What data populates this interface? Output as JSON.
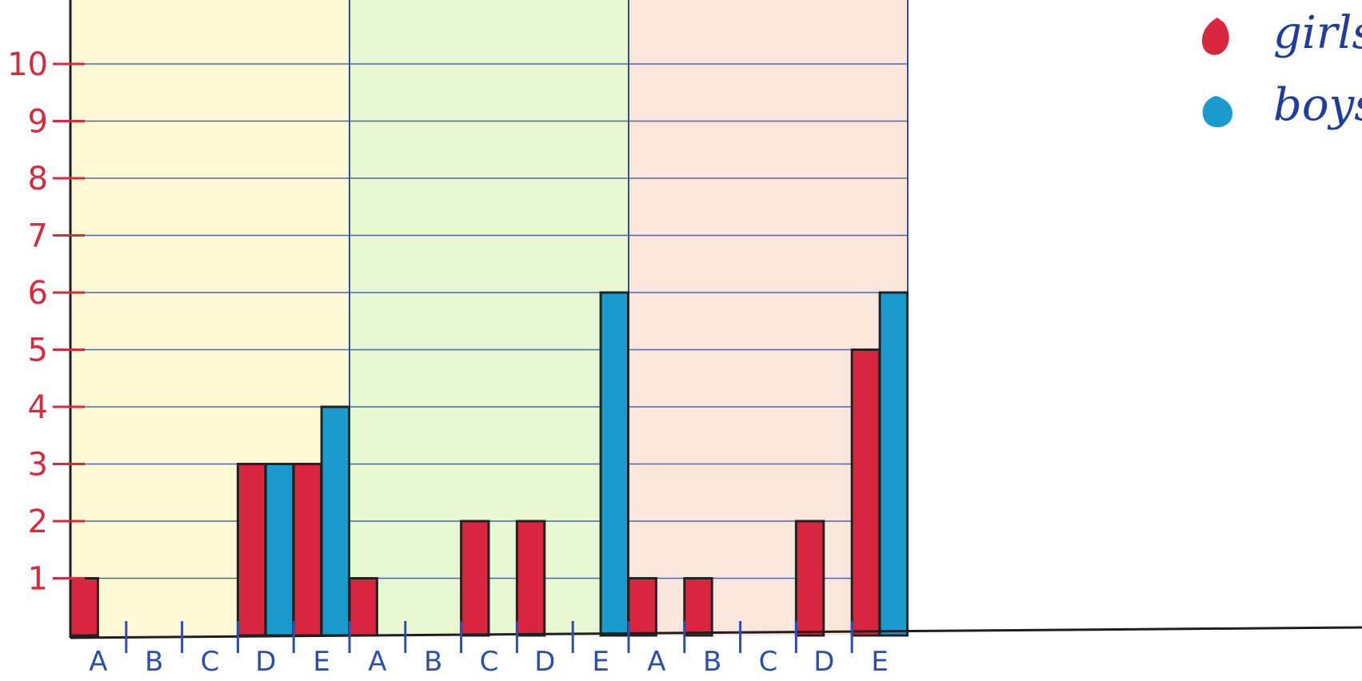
{
  "chart_data": {
    "type": "bar",
    "title": "",
    "xlabel": "",
    "ylabel": "",
    "ylim": [
      0,
      10
    ],
    "yticks": [
      "1",
      "2",
      "3",
      "4",
      "5",
      "6",
      "7",
      "8",
      "9",
      "10"
    ],
    "legend": {
      "placement": "top-right"
    },
    "groups": [
      {
        "background": "#fdf9d2"
      },
      {
        "background": "#e6f7d2"
      },
      {
        "background": "#fbe6de"
      }
    ],
    "categories": [
      "A",
      "B",
      "C",
      "D",
      "E",
      "A",
      "B",
      "C",
      "D",
      "E",
      "A",
      "B",
      "C",
      "D",
      "E"
    ],
    "series": [
      {
        "name": "girls",
        "color": "#d9263f",
        "values": [
          1,
          0,
          0,
          3,
          3,
          1,
          0,
          2,
          2,
          0,
          1,
          1,
          0,
          2,
          5
        ]
      },
      {
        "name": "boys",
        "color": "#1a9bd0",
        "values": [
          0,
          0,
          0,
          3,
          4,
          0,
          0,
          0,
          0,
          6,
          0,
          0,
          0,
          0,
          6
        ]
      }
    ],
    "grid": true,
    "colors": {
      "axis": "#1f1f1f",
      "tick_labels": "#d62b3c",
      "gridline": "#2e4fa8",
      "category_labels": "#2e4fa8",
      "legend_text": "#1f3e9c",
      "bar_outline": "#222222"
    }
  }
}
